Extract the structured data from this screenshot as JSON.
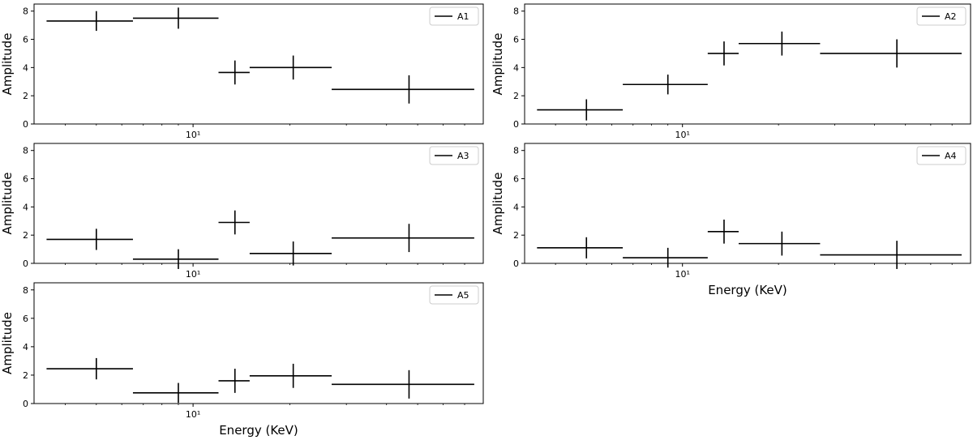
{
  "chart_data": [
    {
      "type": "errorbar",
      "legend": "A1",
      "legend_position": "top-right",
      "xscale": "log",
      "xlim": [
        3.2,
        80
      ],
      "ylim": [
        0,
        8.5
      ],
      "xlabel": "",
      "ylabel": "Amplitude",
      "yticks": [
        0,
        2,
        4,
        6,
        8
      ],
      "xtick_label": "10¹",
      "points": [
        {
          "x": 5,
          "xlo": 3.5,
          "xhi": 6.5,
          "y": 7.3,
          "yerr": 0.7
        },
        {
          "x": 9,
          "xlo": 6.5,
          "xhi": 12,
          "y": 7.5,
          "yerr": 0.75
        },
        {
          "x": 13.5,
          "xlo": 12,
          "xhi": 15,
          "y": 3.65,
          "yerr": 0.85
        },
        {
          "x": 20.5,
          "xlo": 15,
          "xhi": 27,
          "y": 4.0,
          "yerr": 0.85
        },
        {
          "x": 47,
          "xlo": 27,
          "xhi": 75,
          "y": 2.45,
          "yerr": 1.0
        }
      ]
    },
    {
      "type": "errorbar",
      "legend": "A2",
      "legend_position": "top-right",
      "xscale": "log",
      "xlim": [
        3.2,
        80
      ],
      "ylim": [
        0,
        8.5
      ],
      "xlabel": "",
      "ylabel": "Amplitude",
      "yticks": [
        0,
        2,
        4,
        6,
        8
      ],
      "xtick_label": "10¹",
      "points": [
        {
          "x": 5,
          "xlo": 3.5,
          "xhi": 6.5,
          "y": 1.0,
          "yerr": 0.75
        },
        {
          "x": 9,
          "xlo": 6.5,
          "xhi": 12,
          "y": 2.8,
          "yerr": 0.7
        },
        {
          "x": 13.5,
          "xlo": 12,
          "xhi": 15,
          "y": 5.0,
          "yerr": 0.85
        },
        {
          "x": 20.5,
          "xlo": 15,
          "xhi": 27,
          "y": 5.7,
          "yerr": 0.85
        },
        {
          "x": 47,
          "xlo": 27,
          "xhi": 75,
          "y": 5.0,
          "yerr": 1.0
        }
      ]
    },
    {
      "type": "errorbar",
      "legend": "A3",
      "legend_position": "top-right",
      "xscale": "log",
      "xlim": [
        3.2,
        80
      ],
      "ylim": [
        0,
        8.5
      ],
      "xlabel": "",
      "ylabel": "Amplitude",
      "yticks": [
        0,
        2,
        4,
        6,
        8
      ],
      "xtick_label": "10¹",
      "points": [
        {
          "x": 5,
          "xlo": 3.5,
          "xhi": 6.5,
          "y": 1.7,
          "yerr": 0.75
        },
        {
          "x": 9,
          "xlo": 6.5,
          "xhi": 12,
          "y": 0.3,
          "yerr": 0.7
        },
        {
          "x": 13.5,
          "xlo": 12,
          "xhi": 15,
          "y": 2.9,
          "yerr": 0.85
        },
        {
          "x": 20.5,
          "xlo": 15,
          "xhi": 27,
          "y": 0.7,
          "yerr": 0.85
        },
        {
          "x": 47,
          "xlo": 27,
          "xhi": 75,
          "y": 1.8,
          "yerr": 1.0
        }
      ]
    },
    {
      "type": "errorbar",
      "legend": "A4",
      "legend_position": "top-right",
      "xscale": "log",
      "xlim": [
        3.2,
        80
      ],
      "ylim": [
        0,
        8.5
      ],
      "xlabel": "Energy (KeV)",
      "ylabel": "Amplitude",
      "yticks": [
        0,
        2,
        4,
        6,
        8
      ],
      "xtick_label": "10¹",
      "points": [
        {
          "x": 5,
          "xlo": 3.5,
          "xhi": 6.5,
          "y": 1.1,
          "yerr": 0.75
        },
        {
          "x": 9,
          "xlo": 6.5,
          "xhi": 12,
          "y": 0.4,
          "yerr": 0.7
        },
        {
          "x": 13.5,
          "xlo": 12,
          "xhi": 15,
          "y": 2.25,
          "yerr": 0.85
        },
        {
          "x": 20.5,
          "xlo": 15,
          "xhi": 27,
          "y": 1.4,
          "yerr": 0.85
        },
        {
          "x": 47,
          "xlo": 27,
          "xhi": 75,
          "y": 0.6,
          "yerr": 1.0
        }
      ]
    },
    {
      "type": "errorbar",
      "legend": "A5",
      "legend_position": "top-right",
      "xscale": "log",
      "xlim": [
        3.2,
        80
      ],
      "ylim": [
        0,
        8.5
      ],
      "xlabel": "Energy (KeV)",
      "ylabel": "Amplitude",
      "yticks": [
        0,
        2,
        4,
        6,
        8
      ],
      "xtick_label": "10¹",
      "points": [
        {
          "x": 5,
          "xlo": 3.5,
          "xhi": 6.5,
          "y": 2.45,
          "yerr": 0.75
        },
        {
          "x": 9,
          "xlo": 6.5,
          "xhi": 12,
          "y": 0.75,
          "yerr": 0.7
        },
        {
          "x": 13.5,
          "xlo": 12,
          "xhi": 15,
          "y": 1.6,
          "yerr": 0.85
        },
        {
          "x": 20.5,
          "xlo": 15,
          "xhi": 27,
          "y": 1.95,
          "yerr": 0.85
        },
        {
          "x": 47,
          "xlo": 27,
          "xhi": 75,
          "y": 1.35,
          "yerr": 1.0
        }
      ]
    }
  ]
}
